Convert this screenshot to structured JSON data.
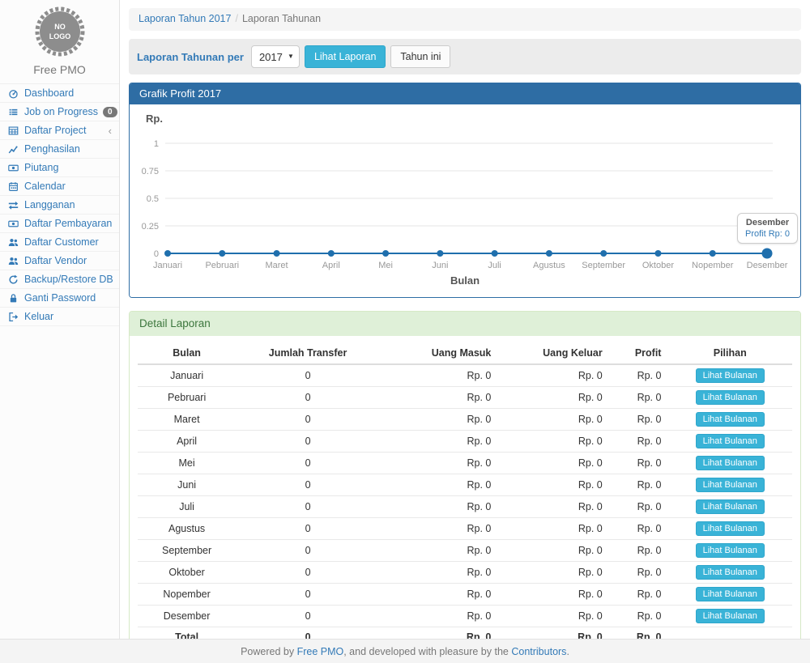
{
  "colors": {
    "accent": "#337ab7",
    "panel_primary": "#2e6da4",
    "info_button": "#39b3d7",
    "panel_success_bg": "#dff0d8",
    "panel_success_border": "#d6e9c6",
    "panel_success_text": "#3c763d",
    "badge_bg": "#777777",
    "chart_line": "#1f6fad"
  },
  "sidebar": {
    "logo_text": "NO LOGO",
    "brand": "Free PMO",
    "items": [
      {
        "label": "Dashboard",
        "icon": "tachometer"
      },
      {
        "label": "Job on Progress",
        "icon": "list",
        "badge": "0"
      },
      {
        "label": "Daftar Project",
        "icon": "table",
        "chevron": "‹"
      },
      {
        "label": "Penghasilan",
        "icon": "chart-line"
      },
      {
        "label": "Piutang",
        "icon": "money"
      },
      {
        "label": "Calendar",
        "icon": "calendar"
      },
      {
        "label": "Langganan",
        "icon": "retweet"
      },
      {
        "label": "Daftar Pembayaran",
        "icon": "money"
      },
      {
        "label": "Daftar Customer",
        "icon": "users"
      },
      {
        "label": "Daftar Vendor",
        "icon": "users"
      },
      {
        "label": "Backup/Restore DB",
        "icon": "refresh"
      },
      {
        "label": "Ganti Password",
        "icon": "lock"
      },
      {
        "label": "Keluar",
        "icon": "sign-out"
      }
    ]
  },
  "breadcrumb": {
    "link": "Laporan Tahun 2017",
    "separator": "/",
    "current": "Laporan Tahunan"
  },
  "filter": {
    "label": "Laporan Tahunan per",
    "year": "2017",
    "view_button": "Lihat Laporan",
    "this_year_button": "Tahun ini"
  },
  "chart_panel": {
    "title": "Grafik Profit 2017"
  },
  "chart_data": {
    "type": "line",
    "title": "Grafik Profit 2017",
    "ylabel": "Rp.",
    "xlabel": "Bulan",
    "categories": [
      "Januari",
      "Pebruari",
      "Maret",
      "April",
      "Mei",
      "Juni",
      "Juli",
      "Agustus",
      "September",
      "Oktober",
      "Nopember",
      "Desember"
    ],
    "values": [
      0,
      0,
      0,
      0,
      0,
      0,
      0,
      0,
      0,
      0,
      0,
      0
    ],
    "yticks": [
      0,
      0.25,
      0.5,
      0.75,
      1
    ],
    "ylim": [
      0,
      1
    ],
    "grid": true,
    "legend": "none",
    "tooltip": {
      "label": "Desember",
      "value": "Profit Rp: 0"
    }
  },
  "detail_panel": {
    "title": "Detail Laporan",
    "columns": [
      "Bulan",
      "Jumlah Transfer",
      "Uang Masuk",
      "Uang Keluar",
      "Profit",
      "Pilihan"
    ],
    "action_label": "Lihat Bulanan",
    "rows": [
      {
        "bulan": "Januari",
        "jumlah_transfer": "0",
        "uang_masuk": "Rp. 0",
        "uang_keluar": "Rp. 0",
        "profit": "Rp. 0"
      },
      {
        "bulan": "Pebruari",
        "jumlah_transfer": "0",
        "uang_masuk": "Rp. 0",
        "uang_keluar": "Rp. 0",
        "profit": "Rp. 0"
      },
      {
        "bulan": "Maret",
        "jumlah_transfer": "0",
        "uang_masuk": "Rp. 0",
        "uang_keluar": "Rp. 0",
        "profit": "Rp. 0"
      },
      {
        "bulan": "April",
        "jumlah_transfer": "0",
        "uang_masuk": "Rp. 0",
        "uang_keluar": "Rp. 0",
        "profit": "Rp. 0"
      },
      {
        "bulan": "Mei",
        "jumlah_transfer": "0",
        "uang_masuk": "Rp. 0",
        "uang_keluar": "Rp. 0",
        "profit": "Rp. 0"
      },
      {
        "bulan": "Juni",
        "jumlah_transfer": "0",
        "uang_masuk": "Rp. 0",
        "uang_keluar": "Rp. 0",
        "profit": "Rp. 0"
      },
      {
        "bulan": "Juli",
        "jumlah_transfer": "0",
        "uang_masuk": "Rp. 0",
        "uang_keluar": "Rp. 0",
        "profit": "Rp. 0"
      },
      {
        "bulan": "Agustus",
        "jumlah_transfer": "0",
        "uang_masuk": "Rp. 0",
        "uang_keluar": "Rp. 0",
        "profit": "Rp. 0"
      },
      {
        "bulan": "September",
        "jumlah_transfer": "0",
        "uang_masuk": "Rp. 0",
        "uang_keluar": "Rp. 0",
        "profit": "Rp. 0"
      },
      {
        "bulan": "Oktober",
        "jumlah_transfer": "0",
        "uang_masuk": "Rp. 0",
        "uang_keluar": "Rp. 0",
        "profit": "Rp. 0"
      },
      {
        "bulan": "Nopember",
        "jumlah_transfer": "0",
        "uang_masuk": "Rp. 0",
        "uang_keluar": "Rp. 0",
        "profit": "Rp. 0"
      },
      {
        "bulan": "Desember",
        "jumlah_transfer": "0",
        "uang_masuk": "Rp. 0",
        "uang_keluar": "Rp. 0",
        "profit": "Rp. 0"
      }
    ],
    "total": {
      "bulan": "Total",
      "jumlah_transfer": "0",
      "uang_masuk": "Rp. 0",
      "uang_keluar": "Rp. 0",
      "profit": "Rp. 0"
    }
  },
  "footer": {
    "prefix": "Powered by ",
    "link1": "Free PMO",
    "middle": ", and developed with pleasure by the ",
    "link2": "Contributors",
    "suffix": "."
  }
}
